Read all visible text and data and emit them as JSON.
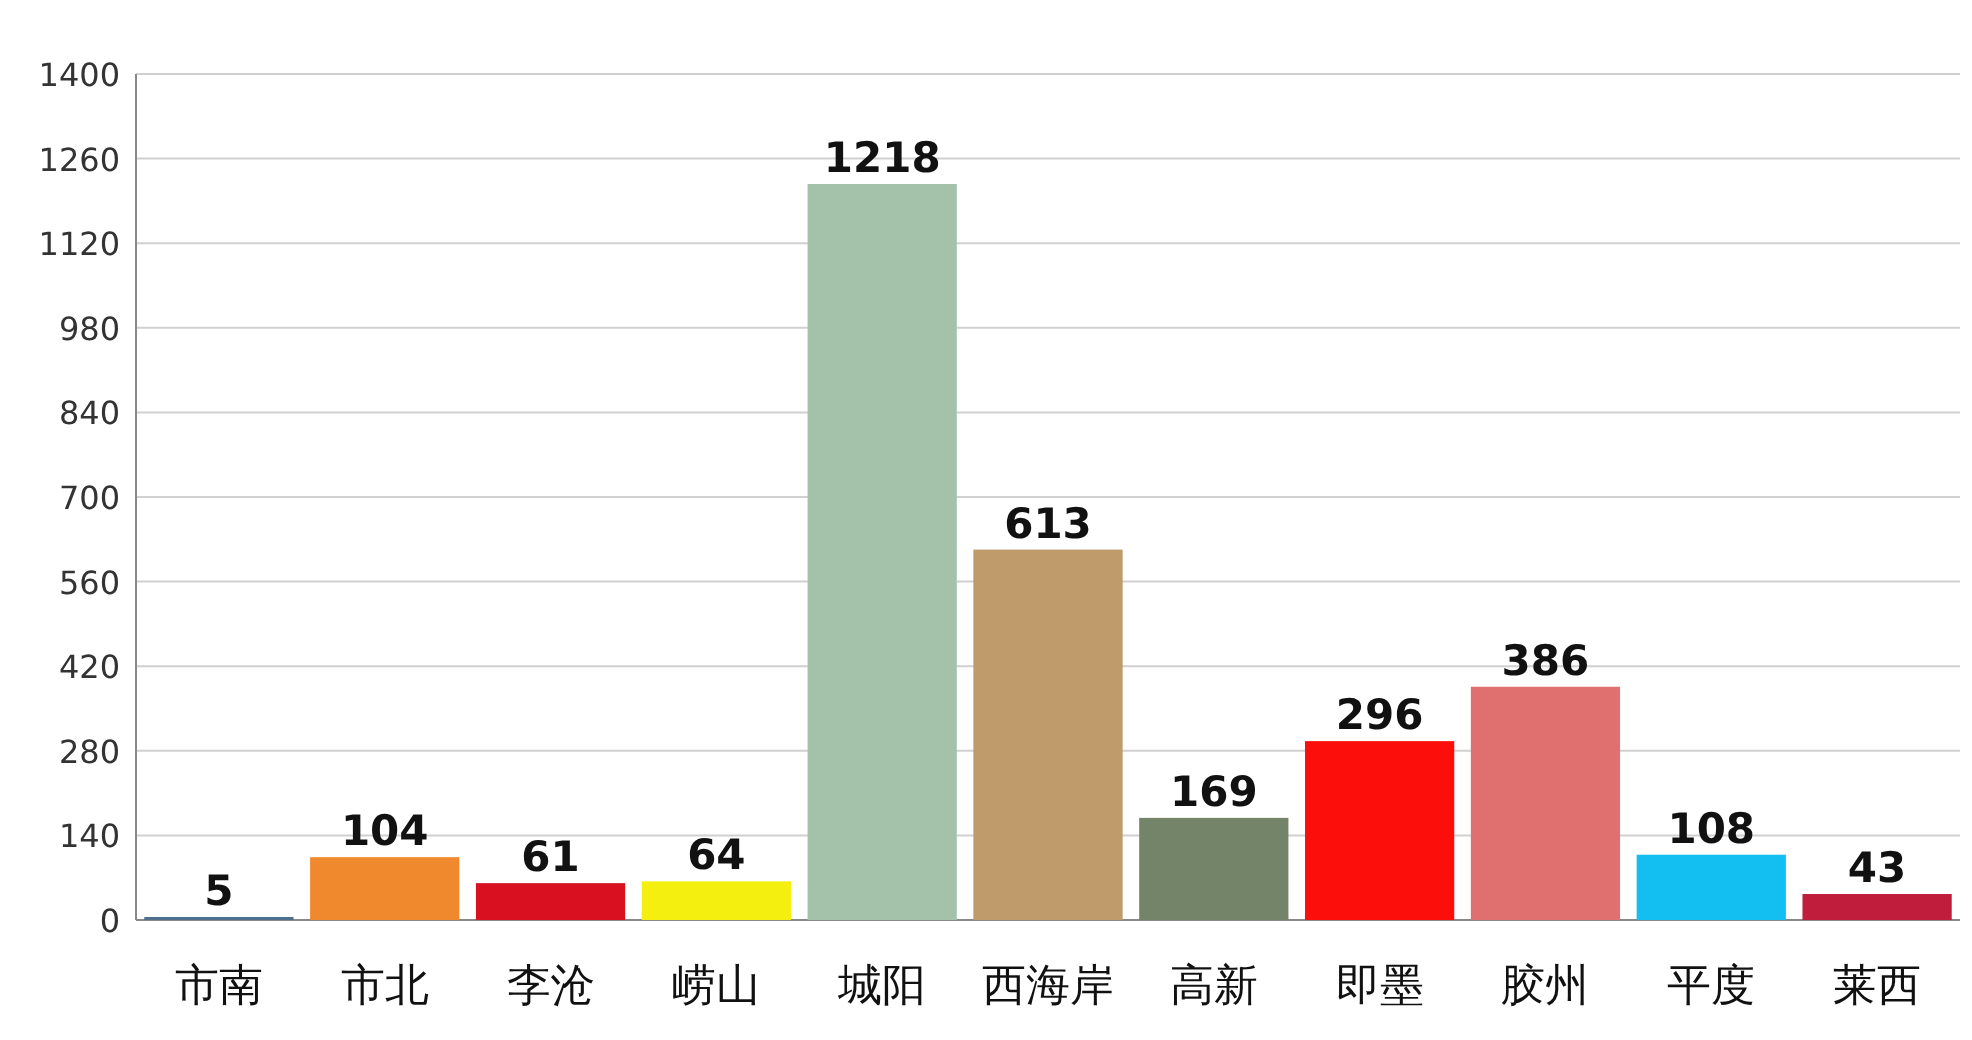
{
  "chart_data": {
    "type": "bar",
    "categories": [
      "市南",
      "市北",
      "李沧",
      "崂山",
      "城阳",
      "西海岸",
      "高新",
      "即墨",
      "胶州",
      "平度",
      "莱西"
    ],
    "values": [
      5,
      104,
      61,
      64,
      1218,
      613,
      169,
      296,
      386,
      108,
      43
    ],
    "colors": [
      "#4f6f8f",
      "#f0892e",
      "#d9101f",
      "#f5ef10",
      "#a4c2aa",
      "#bf9a6a",
      "#748468",
      "#fc0f0a",
      "#e07070",
      "#12bff0",
      "#c01c3c"
    ],
    "ylim": [
      0,
      1400
    ],
    "yticks": [
      0,
      140,
      280,
      420,
      560,
      700,
      840,
      980,
      1120,
      1260,
      1400
    ],
    "grid": "y",
    "data_labels": true
  }
}
